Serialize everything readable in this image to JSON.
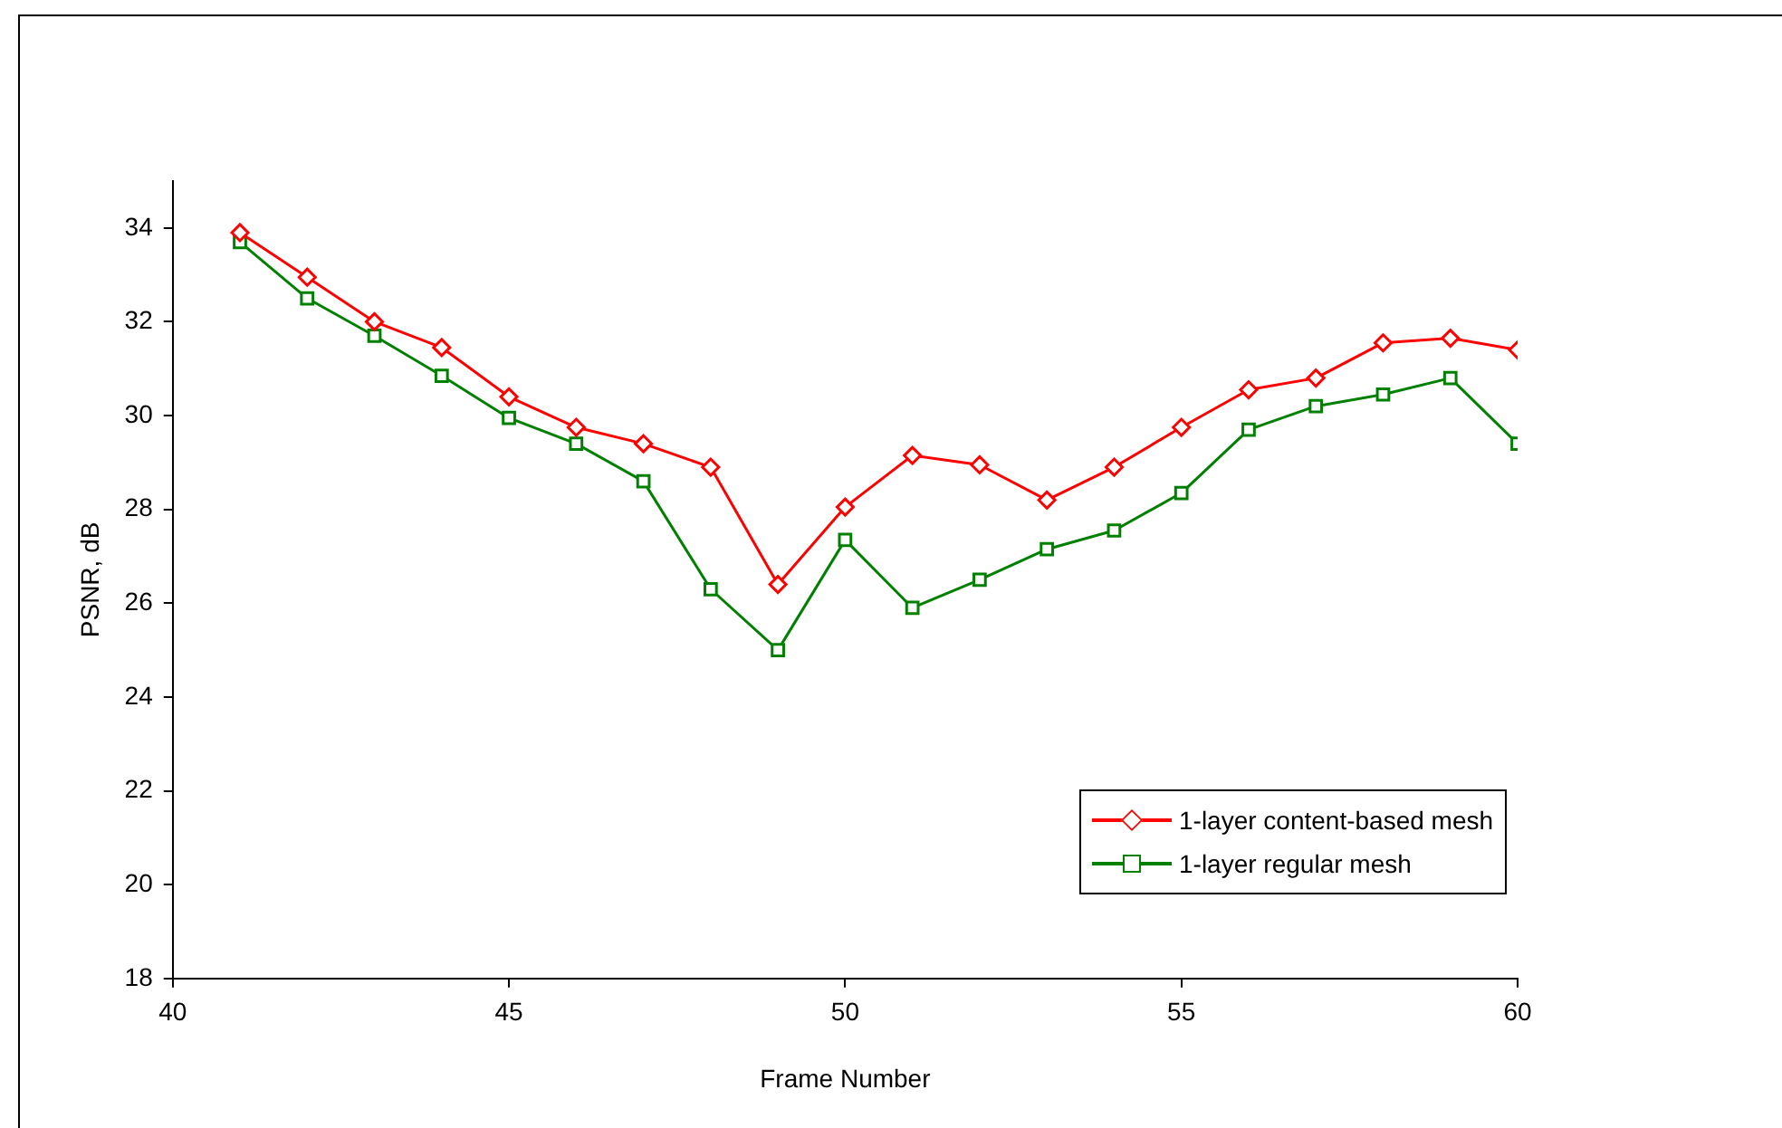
{
  "chart_data": {
    "type": "line",
    "xlabel": "Frame Number",
    "ylabel": "PSNR, dB",
    "x": [
      41,
      42,
      43,
      44,
      45,
      46,
      47,
      48,
      49,
      50,
      51,
      52,
      53,
      54,
      55,
      56,
      57,
      58,
      59,
      60
    ],
    "series": [
      {
        "name": "1-layer content-based mesh",
        "color": "#ff0000",
        "marker": "diamond",
        "values": [
          33.9,
          32.95,
          32.0,
          31.45,
          30.4,
          29.75,
          29.4,
          28.9,
          26.4,
          28.05,
          29.15,
          28.95,
          28.2,
          28.9,
          29.75,
          30.55,
          30.8,
          31.55,
          31.65,
          31.4
        ]
      },
      {
        "name": "1-layer regular mesh",
        "color": "#008000",
        "marker": "square",
        "values": [
          33.7,
          32.5,
          31.7,
          30.85,
          29.95,
          29.4,
          28.6,
          26.3,
          25.0,
          27.35,
          25.9,
          26.5,
          27.15,
          27.55,
          28.35,
          29.7,
          30.2,
          30.45,
          30.8,
          29.4
        ]
      }
    ],
    "xlim": [
      40,
      60
    ],
    "xticks": [
      40,
      45,
      50,
      55,
      60
    ],
    "ylim": [
      18,
      35
    ],
    "yticks": [
      18,
      20,
      22,
      24,
      26,
      28,
      30,
      32,
      34
    ],
    "grid": false,
    "legend": "bottom right",
    "line_style": "solid"
  }
}
